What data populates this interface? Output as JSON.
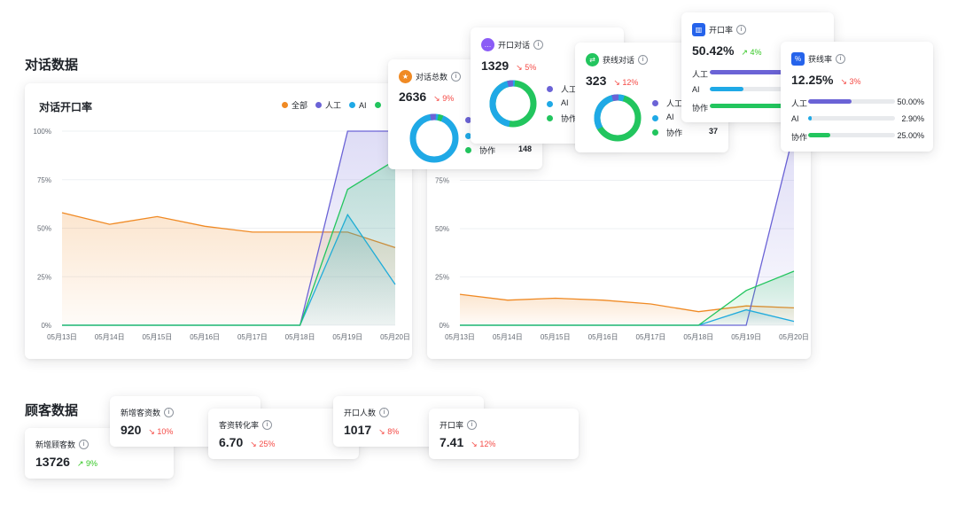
{
  "sections": {
    "dialogue": "对话数据",
    "customer": "顾客数据"
  },
  "chart_left": {
    "title": "对话开口率",
    "legend": [
      {
        "name": "全部",
        "color": "#f08a24"
      },
      {
        "name": "人工",
        "color": "#6b63d6"
      },
      {
        "name": "AI",
        "color": "#1fa9e6"
      },
      {
        "name": "",
        "color": "#22c55e"
      }
    ]
  },
  "chart_data": [
    {
      "type": "area",
      "title": "对话开口率",
      "categories": [
        "05月13日",
        "05月14日",
        "05月15日",
        "05月16日",
        "05月17日",
        "05月18日",
        "05月19日",
        "05月20日"
      ],
      "y_ticks": [
        "0%",
        "25%",
        "50%",
        "75%",
        "100%"
      ],
      "ylim": [
        0,
        100
      ],
      "series": [
        {
          "name": "全部",
          "color": "#f08a24",
          "values": [
            58,
            52,
            56,
            51,
            48,
            48,
            48,
            40
          ]
        },
        {
          "name": "人工",
          "color": "#6b63d6",
          "values": [
            0,
            0,
            0,
            0,
            0,
            0,
            100,
            100
          ]
        },
        {
          "name": "AI",
          "color": "#1fa9e6",
          "values": [
            0,
            0,
            0,
            0,
            0,
            0,
            57,
            21
          ]
        },
        {
          "color": "#22c55e",
          "values": [
            0,
            0,
            0,
            0,
            0,
            0,
            70,
            85
          ]
        }
      ]
    },
    {
      "type": "area",
      "categories": [
        "05月13日",
        "05月14日",
        "05月15日",
        "05月16日",
        "05月17日",
        "05月18日",
        "05月19日",
        "05月20日"
      ],
      "y_ticks": [
        "0%",
        "25%",
        "50%",
        "75%"
      ],
      "ylim": [
        0,
        100
      ],
      "series": [
        {
          "name": "全部",
          "color": "#f08a24",
          "values": [
            16,
            13,
            14,
            13,
            11,
            7,
            10,
            9
          ]
        },
        {
          "name": "人工",
          "color": "#6b63d6",
          "values": [
            0,
            0,
            0,
            0,
            0,
            0,
            0,
            100
          ]
        },
        {
          "name": "AI",
          "color": "#1fa9e6",
          "values": [
            0,
            0,
            0,
            0,
            0,
            0,
            8,
            2
          ]
        },
        {
          "color": "#22c55e",
          "values": [
            0,
            0,
            0,
            0,
            0,
            0,
            18,
            28
          ]
        }
      ]
    }
  ],
  "cards": {
    "total": {
      "title": "对话总数",
      "value": "2636",
      "delta": "9%",
      "row_label": "协作",
      "row_value": "148",
      "icon_color": "#f08a24",
      "icon": "star-icon"
    },
    "open": {
      "title": "开口对话",
      "value": "1329",
      "delta": "5%",
      "rows": [
        "人工",
        "AI",
        "协作"
      ],
      "icon_color": "#8b5cf6",
      "icon": "chat-icon"
    },
    "lead": {
      "title": "获线对话",
      "value": "323",
      "delta": "12%",
      "rows": [
        "人工",
        "AI",
        "协作"
      ],
      "row3_value": "37",
      "icon_color": "#22c55e",
      "icon": "swap-icon"
    },
    "open_rate": {
      "title": "开口率",
      "value": "50.42%",
      "delta": "4%",
      "rows": [
        "人工",
        "AI",
        "协作"
      ],
      "levels": [
        0.95,
        0.3,
        0.95
      ],
      "icon_color": "#2563eb",
      "icon": "bar-chart-icon"
    },
    "lead_rate": {
      "title": "获线率",
      "value": "12.25%",
      "delta": "3%",
      "icon_color": "#2563eb",
      "icon": "percent-icon",
      "rows": [
        {
          "label": "人工",
          "value": "50.00%",
          "level": 0.5,
          "color": "#6b63d6"
        },
        {
          "label": "AI",
          "value": "2.90%",
          "level": 0.029,
          "color": "#1fa9e6"
        },
        {
          "label": "协作",
          "value": "25.00%",
          "level": 0.25,
          "color": "#22c55e"
        }
      ]
    }
  },
  "customer_cards": [
    {
      "title": "新增顾客数",
      "value": "13726",
      "delta": "9%",
      "dir": "up"
    },
    {
      "title": "新增客资数",
      "value": "920",
      "delta": "10%",
      "dir": "down"
    },
    {
      "title": "客资转化率",
      "value": "6.70",
      "delta": "25%",
      "dir": "down"
    },
    {
      "title": "开口人数",
      "value": "1017",
      "delta": "8%",
      "dir": "down"
    },
    {
      "title": "开口率",
      "value": "7.41",
      "delta": "12%",
      "dir": "down"
    }
  ],
  "arrows": {
    "down": "↘",
    "up": "↗"
  },
  "info": "i"
}
